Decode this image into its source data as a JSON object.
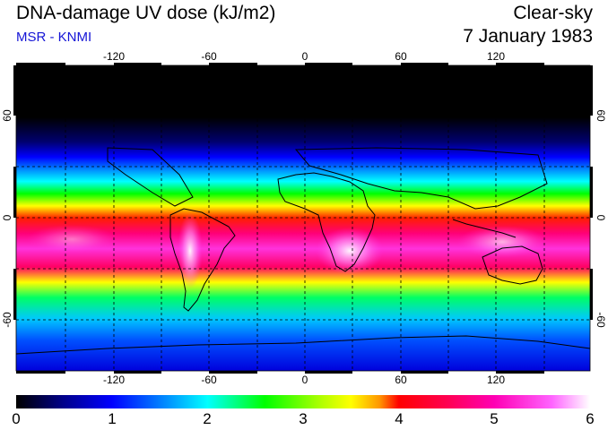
{
  "header": {
    "title": "DNA-damage UV dose (kJ/m2)",
    "subtitle": "MSR - KNMI",
    "condition": "Clear-sky",
    "date": "7 January 1983"
  },
  "map": {
    "longitude_labels": [
      "-120",
      "-60",
      "0",
      "60",
      "120"
    ],
    "latitude_labels": [
      "60",
      "0",
      "-60"
    ],
    "projection": "equirectangular",
    "extent": {
      "lon": [
        -180,
        180
      ],
      "lat": [
        -90,
        90
      ]
    }
  },
  "colorbar": {
    "tick_labels": [
      "0",
      "1",
      "2",
      "3",
      "4",
      "5",
      "6"
    ],
    "range": [
      0,
      6
    ],
    "stops": [
      {
        "value": 0.0,
        "color": "#000000"
      },
      {
        "value": 0.5,
        "color": "#00008c"
      },
      {
        "value": 1.0,
        "color": "#0000ff"
      },
      {
        "value": 1.6,
        "color": "#0096ff"
      },
      {
        "value": 2.0,
        "color": "#00ffff"
      },
      {
        "value": 2.6,
        "color": "#00ff00"
      },
      {
        "value": 3.2,
        "color": "#b4ff00"
      },
      {
        "value": 3.5,
        "color": "#ffff00"
      },
      {
        "value": 3.8,
        "color": "#ff9600"
      },
      {
        "value": 4.0,
        "color": "#ff0000"
      },
      {
        "value": 4.5,
        "color": "#ff0050"
      },
      {
        "value": 5.0,
        "color": "#ff00b4"
      },
      {
        "value": 5.6,
        "color": "#ff64ff"
      },
      {
        "value": 6.0,
        "color": "#ffffff"
      }
    ]
  },
  "colors": {
    "subtitle": "#1515d6"
  }
}
